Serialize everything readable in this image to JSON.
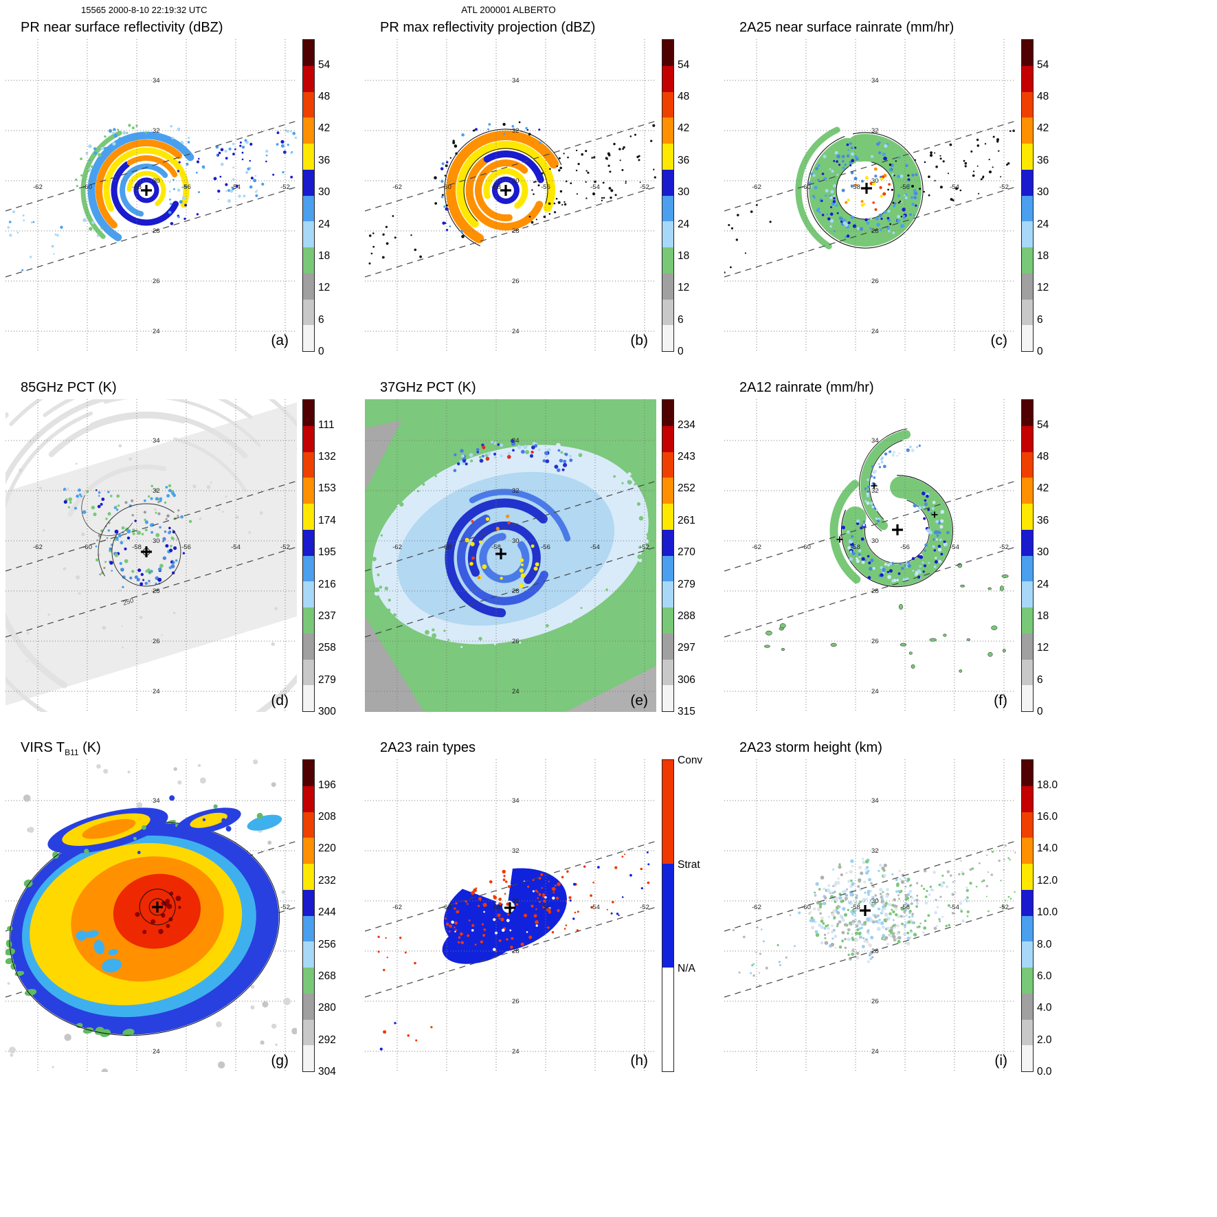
{
  "header": {
    "left": "15565 2000-8-10 22:19:32 UTC",
    "center": "ATL 200001 ALBERTO"
  },
  "map_labels": {
    "lats": [
      "34",
      "32",
      "30",
      "28",
      "26",
      "24"
    ],
    "lons": [
      "-62",
      "-60",
      "-58",
      "-56",
      "-54",
      "-52"
    ]
  },
  "palette": {
    "standard": [
      "#500000",
      "#c40000",
      "#f04000",
      "#ff9000",
      "#ffe800",
      "#1a1ace",
      "#4aa0ee",
      "#a8d8f8",
      "#78c878",
      "#a0a0a0",
      "#c8c8c8",
      "#f4f4f4"
    ],
    "raintype": {
      "conv": "#f03800",
      "strat": "#1122dd",
      "na": "#ffffff"
    }
  },
  "panels": [
    {
      "id": "a",
      "letter": "(a)",
      "title": "PR near surface reflectivity (dBZ)",
      "colorbar": {
        "type": "standard",
        "ticks": [
          "54",
          "48",
          "42",
          "36",
          "30",
          "24",
          "18",
          "12",
          "6",
          "0"
        ]
      }
    },
    {
      "id": "b",
      "letter": "(b)",
      "title": "PR max reflectivity projection (dBZ)",
      "colorbar": {
        "type": "standard",
        "ticks": [
          "54",
          "48",
          "42",
          "36",
          "30",
          "24",
          "18",
          "12",
          "6",
          "0"
        ]
      }
    },
    {
      "id": "c",
      "letter": "(c)",
      "title": "2A25 near surface rainrate (mm/hr)",
      "colorbar": {
        "type": "standard",
        "ticks": [
          "54",
          "48",
          "42",
          "36",
          "30",
          "24",
          "18",
          "12",
          "6",
          "0"
        ]
      }
    },
    {
      "id": "d",
      "letter": "(d)",
      "title": "85GHz PCT (K)",
      "contour_label": "250",
      "colorbar": {
        "type": "standard",
        "ticks": [
          "111",
          "132",
          "153",
          "174",
          "195",
          "216",
          "237",
          "258",
          "279",
          "300"
        ]
      }
    },
    {
      "id": "e",
      "letter": "(e)",
      "title": "37GHz PCT (K)",
      "colorbar": {
        "type": "standard",
        "ticks": [
          "234",
          "243",
          "252",
          "261",
          "270",
          "279",
          "288",
          "297",
          "306",
          "315"
        ]
      }
    },
    {
      "id": "f",
      "letter": "(f)",
      "title": "2A12 rainrate (mm/hr)",
      "colorbar": {
        "type": "standard",
        "ticks": [
          "54",
          "48",
          "42",
          "36",
          "30",
          "24",
          "18",
          "12",
          "6",
          "0"
        ]
      }
    },
    {
      "id": "g",
      "letter": "(g)",
      "title_pre": "VIRS T",
      "title_sub": "B11",
      "title_post": " (K)",
      "colorbar": {
        "type": "standard",
        "ticks": [
          "196",
          "208",
          "220",
          "232",
          "244",
          "256",
          "268",
          "280",
          "292",
          "304"
        ]
      }
    },
    {
      "id": "h",
      "letter": "(h)",
      "title": "2A23 rain types",
      "colorbar": {
        "type": "raintype",
        "labels": [
          "Conv",
          "Strat",
          "N/A"
        ]
      }
    },
    {
      "id": "i",
      "letter": "(i)",
      "title": "2A23 storm height (km)",
      "colorbar": {
        "type": "standard",
        "ticks": [
          "18.0",
          "16.0",
          "14.0",
          "12.0",
          "10.0",
          "8.0",
          "6.0",
          "4.0",
          "2.0",
          "0.0"
        ]
      }
    }
  ],
  "chart_data": [
    {
      "type": "heatmap",
      "panel": "(a)",
      "title": "PR near surface reflectivity (dBZ)",
      "units": "dBZ",
      "colorbar_ticks": [
        54,
        48,
        42,
        36,
        30,
        24,
        18,
        12,
        6,
        0
      ],
      "lon_ticks": [
        -62,
        -60,
        -58,
        -56,
        -54,
        -52
      ],
      "lat_ticks": [
        34,
        32,
        30,
        28,
        26,
        24
      ],
      "center_marker": [
        -58.2,
        29.7
      ]
    },
    {
      "type": "heatmap",
      "panel": "(b)",
      "title": "PR max reflectivity projection (dBZ)",
      "units": "dBZ",
      "colorbar_ticks": [
        54,
        48,
        42,
        36,
        30,
        24,
        18,
        12,
        6,
        0
      ],
      "lon_ticks": [
        -62,
        -60,
        -58,
        -56,
        -54,
        -52
      ],
      "lat_ticks": [
        34,
        32,
        30,
        28,
        26,
        24
      ],
      "center_marker": [
        -58.2,
        29.7
      ]
    },
    {
      "type": "heatmap",
      "panel": "(c)",
      "title": "2A25 near surface rainrate (mm/hr)",
      "units": "mm/hr",
      "colorbar_ticks": [
        54,
        48,
        42,
        36,
        30,
        24,
        18,
        12,
        6,
        0
      ],
      "lon_ticks": [
        -62,
        -60,
        -58,
        -56,
        -54,
        -52
      ],
      "lat_ticks": [
        34,
        32,
        30,
        28,
        26,
        24
      ],
      "center_marker": [
        -58.2,
        29.7
      ]
    },
    {
      "type": "heatmap",
      "panel": "(d)",
      "title": "85GHz PCT (K)",
      "units": "K",
      "colorbar_ticks": [
        111,
        132,
        153,
        174,
        195,
        216,
        237,
        258,
        279,
        300
      ],
      "annotations": [
        "250"
      ],
      "lon_ticks": [
        -62,
        -60,
        -58,
        -56,
        -54,
        -52
      ],
      "lat_ticks": [
        34,
        32,
        30,
        28,
        26,
        24
      ],
      "center_marker": [
        -58.2,
        29.7
      ]
    },
    {
      "type": "heatmap",
      "panel": "(e)",
      "title": "37GHz PCT (K)",
      "units": "K",
      "colorbar_ticks": [
        234,
        243,
        252,
        261,
        270,
        279,
        288,
        297,
        306,
        315
      ],
      "lon_ticks": [
        -62,
        -60,
        -58,
        -56,
        -54,
        -52
      ],
      "lat_ticks": [
        34,
        32,
        30,
        28,
        26,
        24
      ],
      "center_marker": [
        -58.2,
        29.7
      ]
    },
    {
      "type": "heatmap",
      "panel": "(f)",
      "title": "2A12 rainrate (mm/hr)",
      "units": "mm/hr",
      "colorbar_ticks": [
        54,
        48,
        42,
        36,
        30,
        24,
        18,
        12,
        6,
        0
      ],
      "lon_ticks": [
        -62,
        -60,
        -58,
        -56,
        -54,
        -52
      ],
      "lat_ticks": [
        34,
        32,
        30,
        28,
        26,
        24
      ],
      "center_marker": [
        -58.0,
        29.8
      ]
    },
    {
      "type": "heatmap",
      "panel": "(g)",
      "title": "VIRS TB11 (K)",
      "units": "K",
      "colorbar_ticks": [
        196,
        208,
        220,
        232,
        244,
        256,
        268,
        280,
        292,
        304
      ],
      "lon_ticks": [
        -62,
        -60,
        -58,
        -56,
        -54,
        -52
      ],
      "lat_ticks": [
        34,
        32,
        30,
        28,
        26,
        24
      ],
      "center_marker": [
        -58.1,
        29.8
      ]
    },
    {
      "type": "heatmap",
      "panel": "(h)",
      "title": "2A23 rain types",
      "categories": [
        "Conv",
        "Strat",
        "N/A"
      ],
      "lon_ticks": [
        -62,
        -60,
        -58,
        -56,
        -54,
        -52
      ],
      "lat_ticks": [
        34,
        32,
        30,
        28,
        26,
        24
      ],
      "center_marker": [
        -58.2,
        29.7
      ]
    },
    {
      "type": "heatmap",
      "panel": "(i)",
      "title": "2A23 storm height (km)",
      "units": "km",
      "colorbar_ticks": [
        18,
        16,
        14,
        12,
        10,
        8,
        6,
        4,
        2,
        0
      ],
      "lon_ticks": [
        -62,
        -60,
        -58,
        -56,
        -54,
        -52
      ],
      "lat_ticks": [
        34,
        32,
        30,
        28,
        26,
        24
      ],
      "center_marker": [
        -58.2,
        29.7
      ]
    }
  ]
}
